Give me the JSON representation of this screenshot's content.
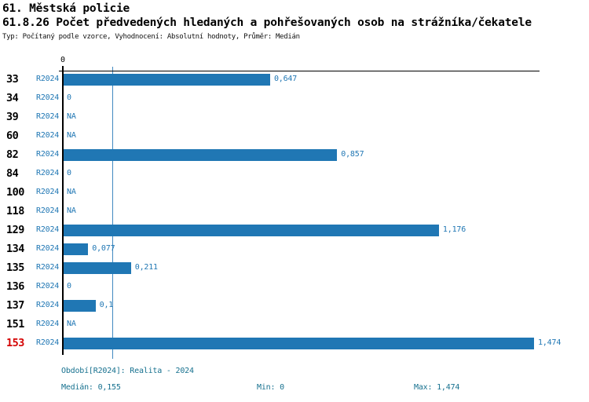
{
  "header": {
    "title": "61. Městská policie",
    "subtitle": "61.8.26 Počet předvedených hledaných a pohřešovaných osob na strážníka/čekatele",
    "meta": "Typ: Počítaný podle vzorce, Vyhodnocení: Absolutní hodnoty, Průměr: Medián"
  },
  "chart_data": {
    "type": "bar",
    "orientation": "horizontal",
    "title": "61.8.26 Počet předvedených hledaných a pohřešovaných osob na strážníka/čekatele",
    "categories": [
      "33",
      "34",
      "39",
      "60",
      "82",
      "84",
      "100",
      "118",
      "129",
      "134",
      "135",
      "136",
      "137",
      "151",
      "153"
    ],
    "series_label": "R2024",
    "values": [
      0.647,
      0,
      null,
      null,
      0.857,
      0,
      null,
      null,
      1.176,
      0.077,
      0.211,
      0,
      0.1,
      null,
      1.474
    ],
    "value_labels": [
      "0,647",
      "0",
      "NA",
      "NA",
      "0,857",
      "0",
      "NA",
      "NA",
      "1,176",
      "0,077",
      "0,211",
      "0",
      "0,1",
      "NA",
      "1,474"
    ],
    "highlighted_category": "153",
    "axis": {
      "tick_label": "0",
      "xmin": 0,
      "xmax": 1.49
    },
    "median_line_value": 0.155,
    "grid": false,
    "legend": false,
    "bar_color": "#2077b4",
    "label_color": "#2077b4",
    "median_line_color": "#4189c0",
    "highlight_color": "#d40000"
  },
  "footer": {
    "period": "Období[R2024]: Realita - 2024",
    "median": "Medián: 0,155",
    "min": "Min: 0",
    "max": "Max: 1,474"
  }
}
